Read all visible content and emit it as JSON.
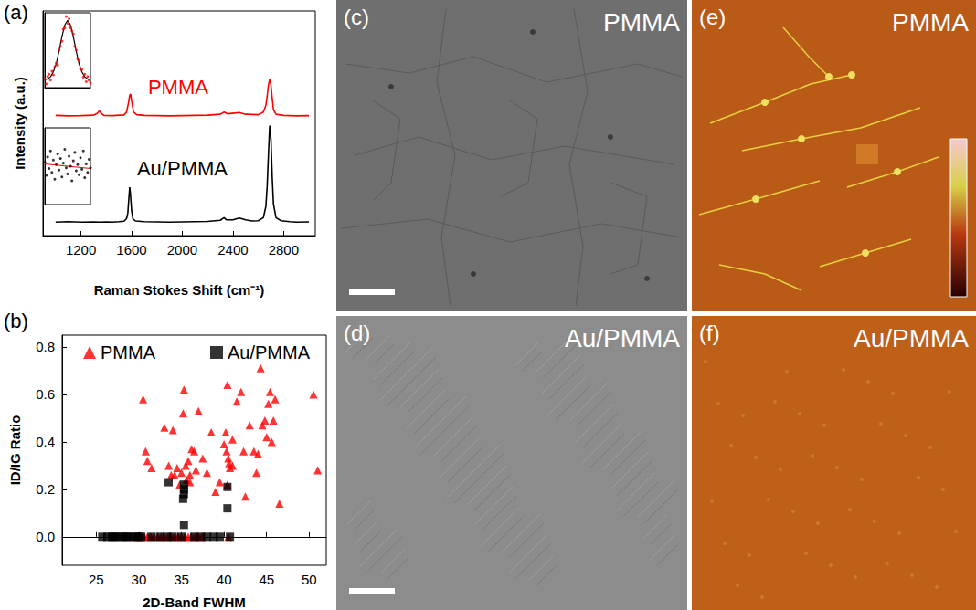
{
  "chart_data": [
    {
      "panel": "(a)",
      "type": "line",
      "x_label": "Raman Stokes Shift (cm⁻¹)",
      "y_label": "Intensity (a.u.)",
      "xlim": [
        900,
        3050
      ],
      "xticks": [
        1200,
        1600,
        2000,
        2400,
        2800
      ],
      "ylim": [
        0,
        10
      ],
      "yticks": [],
      "tick_labels": "x",
      "grid": false,
      "series": [
        {
          "color": "#ff0000",
          "x": [
            1000,
            1100,
            1200,
            1300,
            1330,
            1345,
            1360,
            1380,
            1450,
            1540,
            1560,
            1575,
            1585,
            1592,
            1600,
            1615,
            1640,
            1700,
            1800,
            1900,
            2000,
            2100,
            2200,
            2300,
            2330,
            2360,
            2450,
            2500,
            2600,
            2640,
            2660,
            2670,
            2680,
            2690,
            2700,
            2710,
            2720,
            2740,
            2800,
            2900,
            3000
          ],
          "values": [
            5.35,
            5.33,
            5.34,
            5.36,
            5.45,
            5.55,
            5.45,
            5.35,
            5.34,
            5.37,
            5.5,
            5.9,
            6.25,
            6.3,
            6.0,
            5.5,
            5.38,
            5.35,
            5.34,
            5.33,
            5.34,
            5.35,
            5.36,
            5.4,
            5.5,
            5.42,
            5.48,
            5.4,
            5.38,
            5.5,
            5.8,
            6.2,
            6.7,
            6.95,
            6.7,
            6.1,
            5.6,
            5.4,
            5.35,
            5.33,
            5.34
          ]
        },
        {
          "color": "#000000",
          "x": [
            1000,
            1100,
            1200,
            1300,
            1350,
            1400,
            1450,
            1500,
            1540,
            1560,
            1570,
            1580,
            1585,
            1590,
            1600,
            1610,
            1630,
            1700,
            1800,
            1900,
            2000,
            2100,
            2200,
            2300,
            2330,
            2350,
            2400,
            2450,
            2500,
            2550,
            2600,
            2640,
            2660,
            2670,
            2680,
            2690,
            2700,
            2710,
            2720,
            2740,
            2780,
            2850,
            2900,
            3000
          ],
          "values": [
            0.6,
            0.62,
            0.6,
            0.61,
            0.6,
            0.61,
            0.6,
            0.62,
            0.64,
            0.75,
            1.0,
            1.8,
            2.15,
            1.9,
            1.1,
            0.75,
            0.65,
            0.62,
            0.61,
            0.6,
            0.61,
            0.62,
            0.63,
            0.68,
            0.8,
            0.7,
            0.7,
            0.78,
            0.7,
            0.65,
            0.66,
            0.8,
            1.3,
            2.2,
            3.6,
            4.9,
            4.3,
            2.6,
            1.4,
            0.8,
            0.66,
            0.62,
            0.6,
            0.61
          ]
        }
      ],
      "annotations": [
        {
          "text": "PMMA",
          "x": 1967,
          "y": 6.6,
          "color": "#ff0000"
        },
        {
          "text": "Au/PMMA",
          "x": 2000,
          "y": 3.0,
          "color": "#000000"
        }
      ]
    },
    {
      "type": "scatter",
      "xlim": [
        1260,
        1420
      ],
      "ylim": [
        0,
        1
      ],
      "xticks": [],
      "yticks": [],
      "tick_labels": false,
      "series": [
        {
          "type": "scatter",
          "marker": "circle",
          "color": "#ff0000",
          "x": [
            1260,
            1265,
            1270,
            1275,
            1280,
            1285,
            1290,
            1295,
            1300,
            1305,
            1310,
            1315,
            1320,
            1325,
            1330,
            1335,
            1340,
            1345,
            1350,
            1355,
            1360,
            1365,
            1370,
            1375,
            1380,
            1385,
            1390,
            1395,
            1400,
            1405,
            1410,
            1415,
            1420
          ],
          "values": [
            0.12,
            0.05,
            0.15,
            0.18,
            0.1,
            0.22,
            0.17,
            0.28,
            0.33,
            0.3,
            0.5,
            0.55,
            0.62,
            0.78,
            0.8,
            0.95,
            0.86,
            0.92,
            0.8,
            0.76,
            0.72,
            0.55,
            0.5,
            0.38,
            0.36,
            0.25,
            0.24,
            0.14,
            0.18,
            0.08,
            0.15,
            0.1,
            0.06
          ]
        },
        {
          "type": "line",
          "color": "#000000",
          "x": [
            1260,
            1270,
            1280,
            1290,
            1300,
            1310,
            1320,
            1330,
            1340,
            1350,
            1360,
            1370,
            1380,
            1390,
            1400,
            1410,
            1420
          ],
          "values": [
            0.105,
            0.116,
            0.145,
            0.21,
            0.32,
            0.49,
            0.68,
            0.838,
            0.9,
            0.838,
            0.68,
            0.49,
            0.32,
            0.21,
            0.145,
            0.116,
            0.105
          ]
        }
      ]
    },
    {
      "type": "scatter",
      "xlim": [
        1260,
        1420
      ],
      "ylim": [
        0,
        1
      ],
      "xticks": [],
      "yticks": [],
      "tick_labels": false,
      "series": [
        {
          "type": "scatter",
          "marker": "circle",
          "color": "#000000",
          "x": [
            1260,
            1265,
            1270,
            1275,
            1280,
            1285,
            1290,
            1295,
            1300,
            1305,
            1310,
            1315,
            1320,
            1325,
            1330,
            1335,
            1340,
            1345,
            1350,
            1355,
            1360,
            1365,
            1370,
            1375,
            1380,
            1385,
            1390,
            1395,
            1400,
            1405,
            1410,
            1415,
            1420
          ],
          "values": [
            0.55,
            0.38,
            0.62,
            0.47,
            0.7,
            0.42,
            0.58,
            0.33,
            0.52,
            0.66,
            0.45,
            0.6,
            0.36,
            0.54,
            0.72,
            0.48,
            0.4,
            0.63,
            0.5,
            0.31,
            0.57,
            0.68,
            0.44,
            0.52,
            0.39,
            0.61,
            0.46,
            0.7,
            0.35,
            0.53,
            0.42,
            0.59,
            0.48
          ]
        },
        {
          "type": "line",
          "color": "#ff0000",
          "x": [
            1260,
            1420
          ],
          "values": [
            0.53,
            0.47
          ]
        }
      ]
    },
    {
      "panel": "(b)",
      "type": "scatter",
      "x_label": "2D-Band FWHM",
      "y_label": "ID/IG Ratio",
      "xlim": [
        21,
        52
      ],
      "xticks": [
        25,
        30,
        35,
        40,
        45,
        50
      ],
      "ylim": [
        -0.12,
        0.85
      ],
      "yticks": [
        {
          "value": 0,
          "label": "0.0"
        },
        {
          "value": 0.2,
          "label": "0.2"
        },
        {
          "value": 0.4,
          "label": "0.4"
        },
        {
          "value": 0.6,
          "label": "0.6"
        },
        {
          "value": 0.8,
          "label": "0.8"
        }
      ],
      "grid": false,
      "legend": "top",
      "series": [
        {
          "name": "PMMA",
          "color": "#ff0000",
          "marker": "triangle",
          "x": [
            30.5,
            30.8,
            31,
            31.5,
            33,
            33.5,
            33.8,
            34,
            34.2,
            34.5,
            34.8,
            35,
            35.2,
            35.3,
            35.5,
            35.6,
            35.8,
            36,
            36,
            36.2,
            36.5,
            36.7,
            37,
            37.5,
            38,
            38.5,
            39,
            39.5,
            40,
            40.2,
            40.3,
            40.4,
            40.4,
            40.5,
            40.6,
            40.7,
            41,
            41,
            41.5,
            42,
            42.3,
            42.5,
            43,
            43.5,
            43.8,
            44,
            44.3,
            44.5,
            44.8,
            45,
            45.2,
            45.4,
            45.6,
            45.8,
            46,
            46.5,
            50.5,
            51,
            29.8,
            30.2,
            30.6,
            31,
            31.4,
            31.8,
            32.2,
            32.6,
            33,
            33.4,
            33.8,
            34.2,
            34.6,
            35,
            35.4,
            35.8,
            36.2,
            36.6,
            37,
            37.4,
            40.5
          ],
          "values": [
            0.58,
            0.36,
            0.32,
            0.29,
            0.46,
            0.3,
            0.26,
            0.45,
            0.26,
            0.29,
            0.22,
            0.27,
            0.52,
            0.62,
            0.3,
            0.24,
            0.32,
            0.26,
            0.23,
            0.37,
            0.36,
            0.28,
            0.53,
            0.33,
            0.27,
            0.44,
            0.19,
            0.23,
            0.39,
            0.44,
            0.36,
            0.64,
            0.22,
            0.33,
            0.31,
            0.29,
            0.3,
            0.41,
            0.57,
            0.61,
            0.36,
            0.17,
            0.47,
            0.36,
            0.27,
            0.35,
            0.71,
            0.47,
            0.49,
            0.42,
            0.56,
            0.61,
            0.4,
            0.49,
            0.58,
            0.14,
            0.6,
            0.28,
            0,
            0,
            0,
            0,
            0,
            0,
            0,
            0,
            0,
            0,
            0,
            0,
            0,
            0,
            0,
            0,
            0,
            0,
            0,
            0,
            0
          ]
        },
        {
          "name": "Au/PMMA",
          "color": "#000000",
          "marker": "square",
          "x": [
            25.7,
            26.3,
            26.8,
            27.0,
            27.3,
            27.8,
            28.2,
            28.5,
            28.8,
            29.3,
            29.7,
            30,
            30.3,
            31.5,
            32.5,
            33.3,
            34,
            35,
            36.5,
            37.3,
            38,
            38.8,
            39.5,
            40.7,
            33.5,
            35.3,
            35.3,
            35.3,
            35.3,
            35.2,
            40.4,
            40.4
          ],
          "values": [
            0,
            0,
            0,
            0,
            0,
            0,
            0,
            0,
            0,
            0,
            0,
            0,
            0,
            0,
            0,
            0,
            0,
            0,
            0,
            0,
            0,
            0,
            0,
            0,
            0.23,
            0.22,
            0.2,
            0.18,
            0.05,
            0.16,
            0.21,
            0.12
          ]
        }
      ]
    }
  ],
  "image_panels": [
    {
      "label": "(c)",
      "title": "PMMA"
    },
    {
      "label": "(d)",
      "title": "Au/PMMA"
    },
    {
      "label": "(e)",
      "title": "PMMA"
    },
    {
      "label": "(f)",
      "title": "Au/PMMA"
    }
  ]
}
